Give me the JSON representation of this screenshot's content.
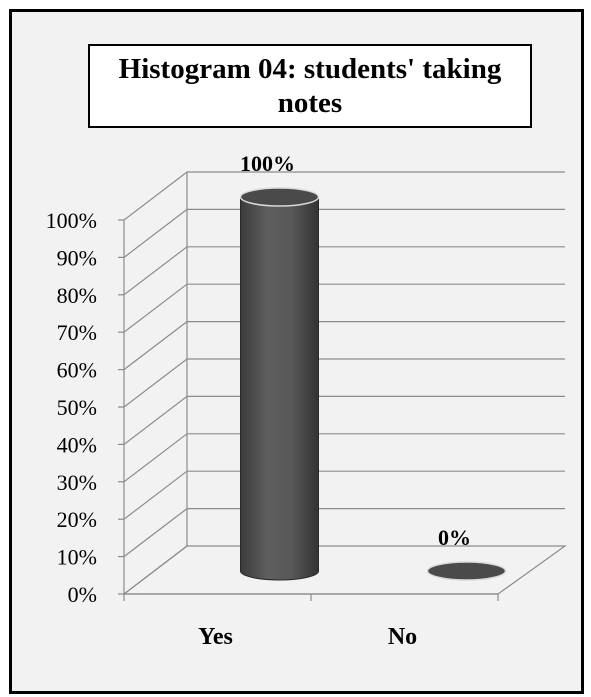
{
  "chart_data": {
    "type": "bar",
    "title": "Histogram 04: students' taking notes",
    "categories": [
      "Yes",
      "No"
    ],
    "values": [
      100,
      0
    ],
    "data_labels": [
      "100%",
      "0%"
    ],
    "ylim": [
      0,
      100
    ],
    "yticks": [
      0,
      10,
      20,
      30,
      40,
      50,
      60,
      70,
      80,
      90,
      100
    ],
    "ytick_labels": [
      "0%",
      "10%",
      "20%",
      "30%",
      "40%",
      "50%",
      "60%",
      "70%",
      "80%",
      "90%",
      "100%"
    ],
    "xlabel": "",
    "ylabel": "",
    "grid": true,
    "legend": "none",
    "bar_style": "3d-cylinder",
    "colors": {
      "bar": "#555555",
      "bar_edge": "#2a2a2a",
      "bar_top": "#4a4a4a",
      "grid": "#8c8c8c",
      "background": "#f2f2f2"
    }
  }
}
